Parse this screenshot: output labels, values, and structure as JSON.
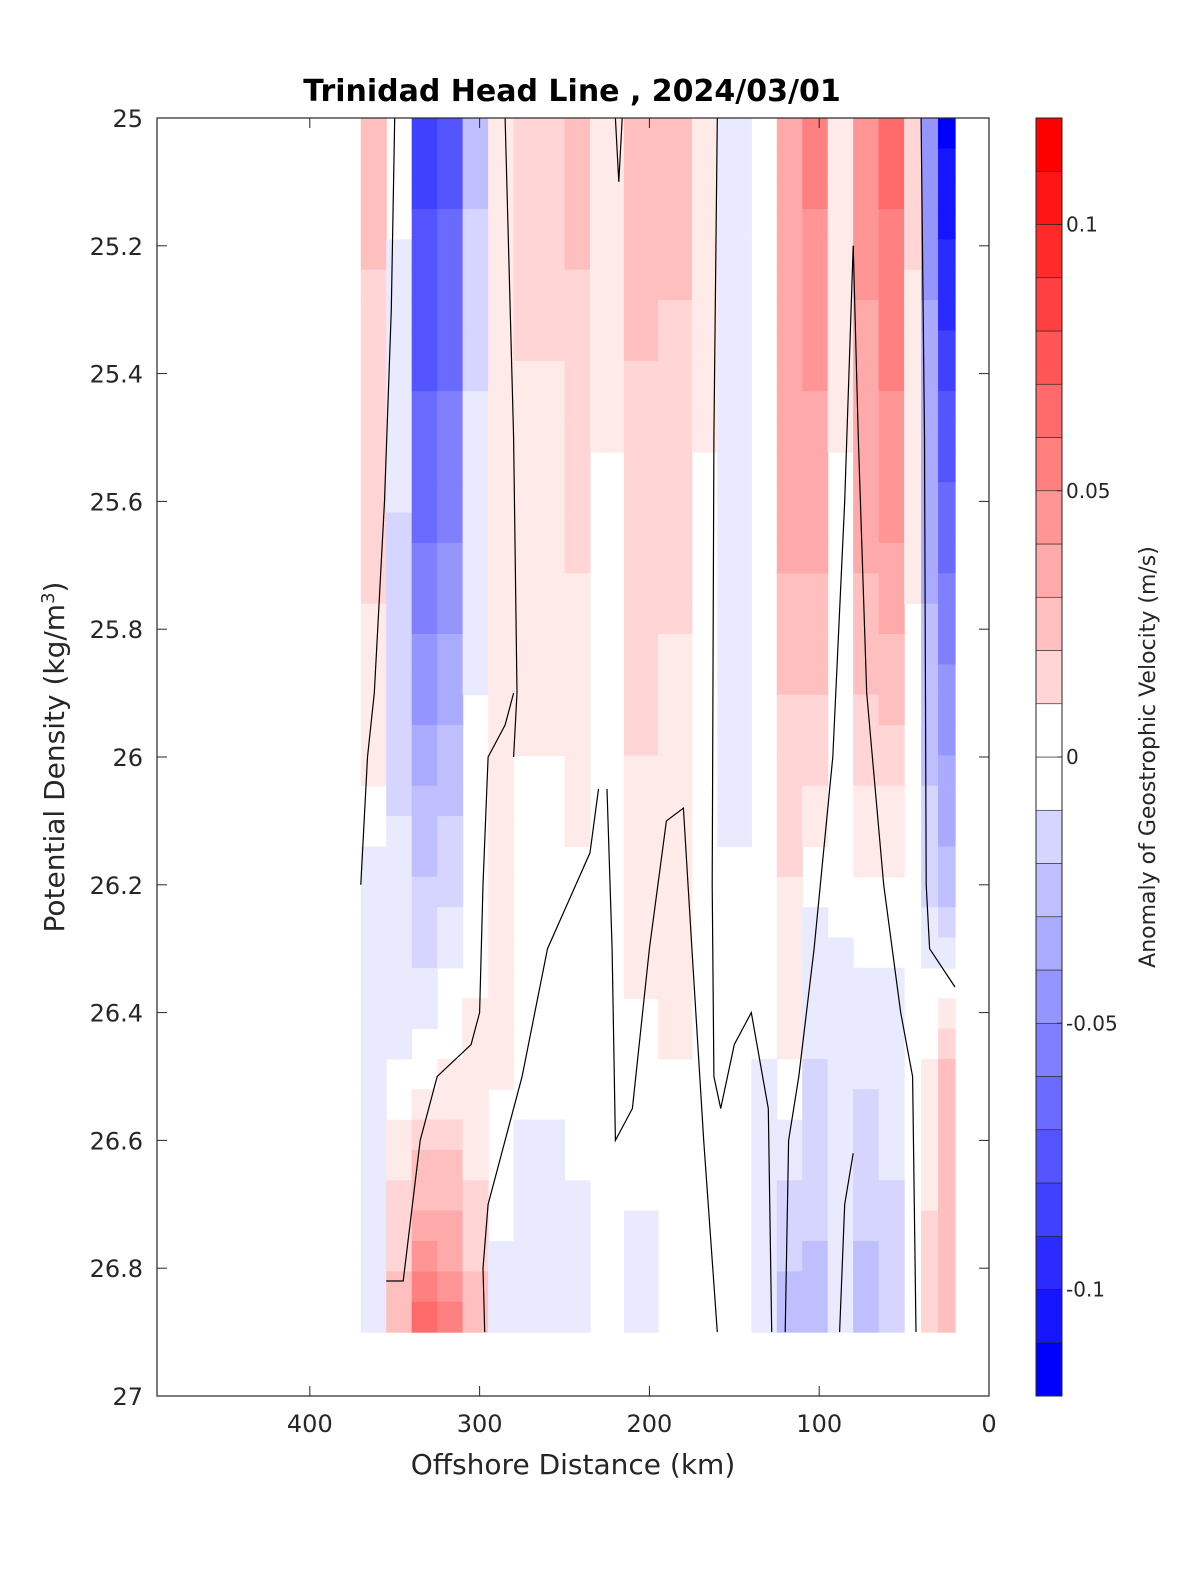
{
  "chart_data": {
    "type": "contour",
    "title": "Trinidad Head Line , 2024/03/01",
    "xlabel": "Offshore Distance (km)",
    "ylabel_main": "Potential Density (kg/m",
    "ylabel_sup": "3",
    "ylabel_close": ")",
    "colorbar_label": "Anomaly of Geostrophic Velocity (m/s)",
    "xlim": [
      490,
      0
    ],
    "x_reversed": true,
    "ylim": [
      25,
      27
    ],
    "y_reversed": true,
    "x_ticks": [
      {
        "value": 400,
        "label": "400"
      },
      {
        "value": 300,
        "label": "300"
      },
      {
        "value": 200,
        "label": "200"
      },
      {
        "value": 100,
        "label": "100"
      },
      {
        "value": 0,
        "label": "0"
      }
    ],
    "y_ticks": [
      {
        "value": 25,
        "label": "25"
      },
      {
        "value": 25.2,
        "label": "25.2"
      },
      {
        "value": 25.4,
        "label": "25.4"
      },
      {
        "value": 25.6,
        "label": "25.6"
      },
      {
        "value": 25.8,
        "label": "25.8"
      },
      {
        "value": 26,
        "label": "26"
      },
      {
        "value": 26.2,
        "label": "26.2"
      },
      {
        "value": 26.4,
        "label": "26.4"
      },
      {
        "value": 26.6,
        "label": "26.6"
      },
      {
        "value": 26.8,
        "label": "26.8"
      },
      {
        "value": 27,
        "label": "27"
      }
    ],
    "colorbar": {
      "range": [
        -0.12,
        0.12
      ],
      "level_step": 0.01,
      "color_negative": "#0000ff",
      "color_zero": "#ffffff",
      "color_positive": "#ff0000",
      "ticks": [
        {
          "value": 0.1,
          "label": "0.1"
        },
        {
          "value": 0.05,
          "label": "0.05"
        },
        {
          "value": 0,
          "label": "0"
        },
        {
          "value": -0.05,
          "label": "-0.05"
        },
        {
          "value": -0.1,
          "label": "-0.1"
        }
      ]
    },
    "data_extent": {
      "x": [
        370,
        20
      ],
      "y_max": 26.9
    },
    "bands": [
      {
        "x": [
          370,
          355
        ],
        "profile": [
          [
            25,
            0.03
          ],
          [
            25.5,
            0.02
          ],
          [
            26,
            0.01
          ],
          [
            26.2,
            -0.01
          ],
          [
            26.9,
            -0.01
          ]
        ]
      },
      {
        "x": [
          355,
          340
        ],
        "profile": [
          [
            25,
            0.0
          ],
          [
            25.8,
            -0.02
          ],
          [
            26.4,
            -0.01
          ],
          [
            26.6,
            0.01
          ],
          [
            26.9,
            0.03
          ]
        ]
      },
      {
        "x": [
          340,
          325
        ],
        "profile": [
          [
            25,
            -0.09
          ],
          [
            25.6,
            -0.07
          ],
          [
            26.0,
            -0.04
          ],
          [
            26.4,
            -0.01
          ],
          [
            26.6,
            0.02
          ],
          [
            26.9,
            0.07
          ]
        ]
      },
      {
        "x": [
          325,
          310
        ],
        "profile": [
          [
            25,
            -0.08
          ],
          [
            25.6,
            -0.06
          ],
          [
            26.0,
            -0.03
          ],
          [
            26.3,
            -0.01
          ],
          [
            26.6,
            0.02
          ],
          [
            26.9,
            0.06
          ]
        ]
      },
      {
        "x": [
          310,
          295
        ],
        "profile": [
          [
            25,
            -0.03
          ],
          [
            25.6,
            -0.01
          ],
          [
            26.2,
            0.0
          ],
          [
            26.6,
            0.01
          ],
          [
            26.9,
            0.03
          ]
        ]
      },
      {
        "x": [
          295,
          280
        ],
        "profile": [
          [
            25,
            0.01
          ],
          [
            26.0,
            0.01
          ],
          [
            26.4,
            0.01
          ],
          [
            26.9,
            -0.01
          ]
        ]
      },
      {
        "x": [
          280,
          265
        ],
        "profile": [
          [
            25,
            0.02
          ],
          [
            25.8,
            0.01
          ],
          [
            26.2,
            0.0
          ],
          [
            26.9,
            -0.01
          ]
        ]
      },
      {
        "x": [
          265,
          250
        ],
        "profile": [
          [
            25,
            0.02
          ],
          [
            25.8,
            0.01
          ],
          [
            26.2,
            0.0
          ],
          [
            26.9,
            -0.01
          ]
        ]
      },
      {
        "x": [
          250,
          235
        ],
        "profile": [
          [
            25,
            0.03
          ],
          [
            25.5,
            0.02
          ],
          [
            25.9,
            0.01
          ],
          [
            26.9,
            -0.01
          ]
        ]
      },
      {
        "x": [
          235,
          215
        ],
        "profile": [
          [
            25,
            0.01
          ],
          [
            26.0,
            0.0
          ],
          [
            26.9,
            0.0
          ]
        ]
      },
      {
        "x": [
          215,
          195
        ],
        "profile": [
          [
            25,
            0.03
          ],
          [
            25.8,
            0.02
          ],
          [
            26.2,
            0.01
          ],
          [
            26.9,
            -0.01
          ]
        ]
      },
      {
        "x": [
          195,
          175
        ],
        "profile": [
          [
            25,
            0.03
          ],
          [
            25.6,
            0.02
          ],
          [
            26.0,
            0.01
          ],
          [
            26.9,
            0.0
          ]
        ]
      },
      {
        "x": [
          175,
          160
        ],
        "profile": [
          [
            25,
            0.01
          ],
          [
            26.0,
            0.0
          ],
          [
            26.9,
            0.0
          ]
        ]
      },
      {
        "x": [
          160,
          140
        ],
        "profile": [
          [
            25,
            -0.01
          ],
          [
            25.8,
            -0.01
          ],
          [
            26.5,
            0.0
          ],
          [
            26.9,
            0.0
          ]
        ]
      },
      {
        "x": [
          140,
          125
        ],
        "profile": [
          [
            25,
            0.0
          ],
          [
            26.0,
            0.0
          ],
          [
            26.9,
            -0.01
          ]
        ]
      },
      {
        "x": [
          125,
          110
        ],
        "profile": [
          [
            25,
            0.04
          ],
          [
            25.6,
            0.04
          ],
          [
            26.0,
            0.02
          ],
          [
            26.4,
            0.01
          ],
          [
            26.6,
            -0.01
          ],
          [
            26.9,
            -0.03
          ]
        ]
      },
      {
        "x": [
          110,
          95
        ],
        "profile": [
          [
            25,
            0.06
          ],
          [
            25.6,
            0.04
          ],
          [
            26.0,
            0.02
          ],
          [
            26.3,
            -0.01
          ],
          [
            26.6,
            -0.02
          ],
          [
            26.9,
            -0.03
          ]
        ]
      },
      {
        "x": [
          95,
          80
        ],
        "profile": [
          [
            25,
            0.01
          ],
          [
            26.0,
            0.0
          ],
          [
            26.6,
            -0.01
          ],
          [
            26.9,
            -0.01
          ]
        ]
      },
      {
        "x": [
          80,
          65
        ],
        "profile": [
          [
            25,
            0.05
          ],
          [
            25.6,
            0.04
          ],
          [
            26.0,
            0.02
          ],
          [
            26.4,
            -0.01
          ],
          [
            26.9,
            -0.03
          ]
        ]
      },
      {
        "x": [
          65,
          50
        ],
        "profile": [
          [
            25,
            0.07
          ],
          [
            25.6,
            0.05
          ],
          [
            26.0,
            0.02
          ],
          [
            26.4,
            -0.01
          ],
          [
            26.9,
            -0.02
          ]
        ]
      },
      {
        "x": [
          50,
          40
        ],
        "profile": [
          [
            25,
            0.02
          ],
          [
            26.0,
            0.0
          ],
          [
            26.6,
            0.0
          ],
          [
            26.9,
            0.0
          ]
        ]
      },
      {
        "x": [
          40,
          30
        ],
        "profile": [
          [
            25,
            -0.05
          ],
          [
            25.6,
            -0.04
          ],
          [
            26.2,
            -0.02
          ],
          [
            26.5,
            0.01
          ],
          [
            26.9,
            0.02
          ]
        ]
      },
      {
        "x": [
          30,
          20
        ],
        "profile": [
          [
            25,
            -0.12
          ],
          [
            25.5,
            -0.08
          ],
          [
            26.2,
            -0.03
          ],
          [
            26.5,
            0.03
          ],
          [
            26.9,
            0.03
          ]
        ]
      }
    ],
    "zero_contours": [
      [
        [
          350,
          25
        ],
        [
          352,
          25.3
        ],
        [
          356,
          25.6
        ],
        [
          362,
          25.9
        ],
        [
          366,
          26.0
        ],
        [
          370,
          26.2
        ]
      ],
      [
        [
          280,
          25.9
        ],
        [
          285,
          25.95
        ],
        [
          295,
          26.0
        ],
        [
          298,
          26.2
        ],
        [
          300,
          26.4
        ],
        [
          305,
          26.45
        ],
        [
          325,
          26.5
        ],
        [
          335,
          26.6
        ],
        [
          345,
          26.82
        ],
        [
          355,
          26.82
        ]
      ],
      [
        [
          285,
          25
        ],
        [
          280,
          25.5
        ],
        [
          278,
          25.9
        ],
        [
          280,
          26.0
        ]
      ],
      [
        [
          220,
          25
        ],
        [
          219,
          25.05
        ],
        [
          218,
          25.1
        ],
        [
          217,
          25.05
        ],
        [
          216,
          25
        ]
      ],
      [
        [
          230,
          26.05
        ],
        [
          235,
          26.15
        ],
        [
          260,
          26.3
        ],
        [
          275,
          26.5
        ],
        [
          295,
          26.7
        ],
        [
          298,
          26.8
        ],
        [
          297,
          26.9
        ]
      ],
      [
        [
          160,
          25
        ],
        [
          162,
          25.5
        ],
        [
          163,
          26.2
        ],
        [
          162,
          26.5
        ],
        [
          158,
          26.55
        ],
        [
          150,
          26.45
        ],
        [
          140,
          26.4
        ],
        [
          130,
          26.55
        ],
        [
          128,
          26.9
        ]
      ],
      [
        [
          225,
          26.05
        ],
        [
          222,
          26.3
        ],
        [
          220,
          26.6
        ],
        [
          210,
          26.55
        ],
        [
          200,
          26.3
        ],
        [
          190,
          26.1
        ],
        [
          180,
          26.08
        ],
        [
          175,
          26.3
        ],
        [
          168,
          26.6
        ],
        [
          160,
          26.9
        ]
      ],
      [
        [
          80,
          25.2
        ],
        [
          77,
          25.5
        ],
        [
          72,
          25.9
        ],
        [
          62,
          26.2
        ],
        [
          52,
          26.4
        ],
        [
          45,
          26.5
        ],
        [
          43,
          26.9
        ]
      ],
      [
        [
          80,
          25.2
        ],
        [
          85,
          25.6
        ],
        [
          92,
          26.0
        ],
        [
          103,
          26.3
        ],
        [
          112,
          26.5
        ],
        [
          118,
          26.6
        ],
        [
          120,
          26.9
        ]
      ],
      [
        [
          40,
          25
        ],
        [
          38,
          25.5
        ],
        [
          37,
          26.2
        ],
        [
          35,
          26.3
        ],
        [
          20,
          26.36
        ]
      ],
      [
        [
          80,
          26.62
        ],
        [
          85,
          26.7
        ],
        [
          88,
          26.9
        ]
      ]
    ]
  }
}
